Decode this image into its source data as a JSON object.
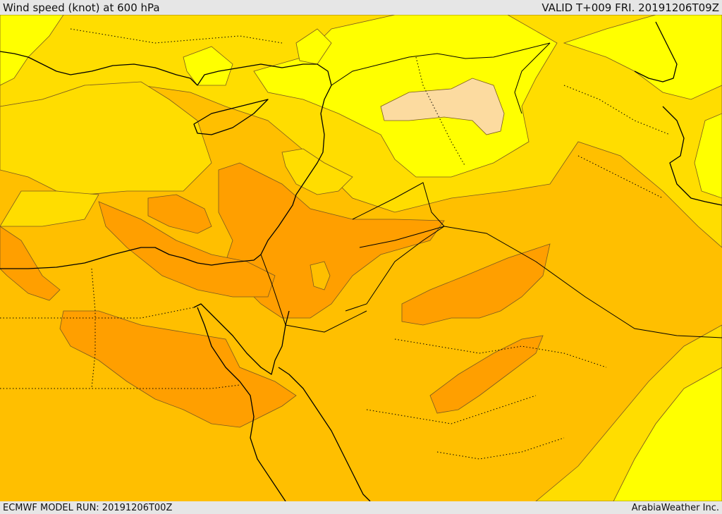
{
  "header": {
    "title": "Wind speed (knot) at 600 hPa",
    "valid": "VALID T+009 FRI. 20191206T09Z"
  },
  "footer": {
    "model_run": "ECMWF MODEL RUN: 20191206T00Z",
    "credit": "ArabiaWeather Inc."
  },
  "map": {
    "colors": {
      "very_low": "#fcdba0",
      "low": "#ffff00",
      "mid": "#ffdd00",
      "high": "#ffbf00",
      "very_high": "#ff9f00"
    }
  }
}
